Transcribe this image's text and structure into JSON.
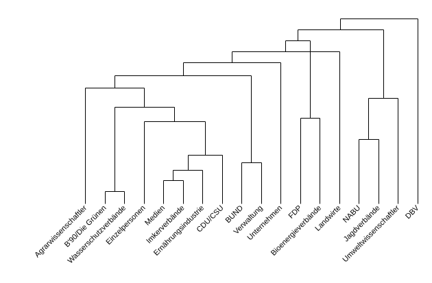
{
  "dendrogram": {
    "leaves": [
      "Agrarwissenschaftler",
      "B'90/Die Grünen",
      "Wasserschutzverbände",
      "Einzelpersonen",
      "Medien",
      "Imkerverbände",
      "Ernährungsindustrie",
      "CDU/CSU",
      "BUND",
      "Verwaltung",
      "Unternehmen",
      "FDP",
      "Bioenergieverbände",
      "Landwirte",
      "NABU",
      "Jagdverbände",
      "Umweltwissenschaftler",
      "DBV"
    ],
    "merges": [
      {
        "id": "m1",
        "children": [
          "L1",
          "L2"
        ],
        "height": 1.0
      },
      {
        "id": "m2",
        "children": [
          "L4",
          "L5"
        ],
        "height": 1.9
      },
      {
        "id": "m3",
        "children": [
          "m2",
          "L6"
        ],
        "height": 2.8
      },
      {
        "id": "m4",
        "children": [
          "m3",
          "L7"
        ],
        "height": 4.0
      },
      {
        "id": "m5",
        "children": [
          "L8",
          "L9"
        ],
        "height": 3.4
      },
      {
        "id": "m6",
        "children": [
          "L14",
          "L15"
        ],
        "height": 5.3
      },
      {
        "id": "m7",
        "children": [
          "L11",
          "L12"
        ],
        "height": 7.1
      },
      {
        "id": "m8",
        "children": [
          "L3",
          "m4"
        ],
        "height": 6.8
      },
      {
        "id": "m9",
        "children": [
          "m1",
          "m8"
        ],
        "height": 8.0
      },
      {
        "id": "m10",
        "children": [
          "L0",
          "m9"
        ],
        "height": 9.6
      },
      {
        "id": "m11",
        "children": [
          "m6",
          "L16"
        ],
        "height": 8.7
      },
      {
        "id": "m12",
        "children": [
          "m10",
          "m5"
        ],
        "height": 10.6
      },
      {
        "id": "m13",
        "children": [
          "m12",
          "L10"
        ],
        "height": 11.7
      },
      {
        "id": "m14",
        "children": [
          "m13",
          "L13"
        ],
        "height": 12.6
      },
      {
        "id": "m15",
        "children": [
          "m14",
          "m7"
        ],
        "height": 13.5
      },
      {
        "id": "m16",
        "children": [
          "m15",
          "m11"
        ],
        "height": 14.4
      },
      {
        "id": "m17",
        "children": [
          "m16",
          "L17"
        ],
        "height": 15.3
      }
    ],
    "max_height": 15.3
  }
}
